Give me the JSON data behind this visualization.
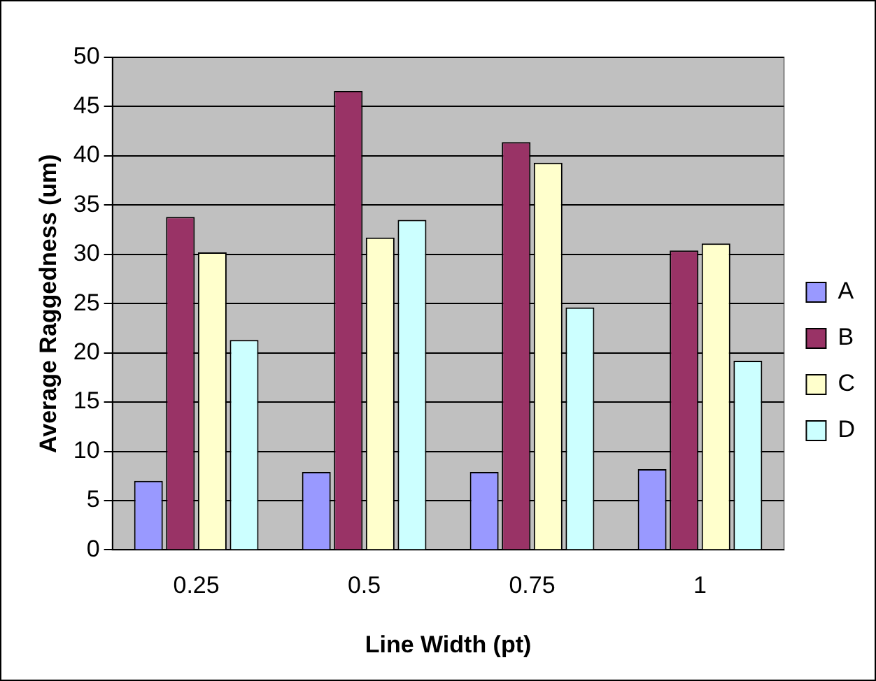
{
  "chart_data": {
    "type": "bar",
    "xlabel": "Line Width (pt)",
    "ylabel": "Average Raggedness (um)",
    "categories": [
      "0.25",
      "0.5",
      "0.75",
      "1"
    ],
    "series": [
      {
        "name": "A",
        "color": "#9999ff",
        "values": [
          7.0,
          7.9,
          7.9,
          8.2
        ]
      },
      {
        "name": "B",
        "color": "#993366",
        "values": [
          33.8,
          46.6,
          41.4,
          30.4
        ]
      },
      {
        "name": "C",
        "color": "#ffffcc",
        "values": [
          30.2,
          31.7,
          39.3,
          31.1
        ]
      },
      {
        "name": "D",
        "color": "#ccffff",
        "values": [
          21.3,
          33.5,
          24.6,
          19.2
        ]
      }
    ],
    "ylim": [
      0,
      50
    ],
    "yticks": [
      0,
      5,
      10,
      15,
      20,
      25,
      30,
      35,
      40,
      45,
      50
    ],
    "grid": "y",
    "legend": "right"
  }
}
